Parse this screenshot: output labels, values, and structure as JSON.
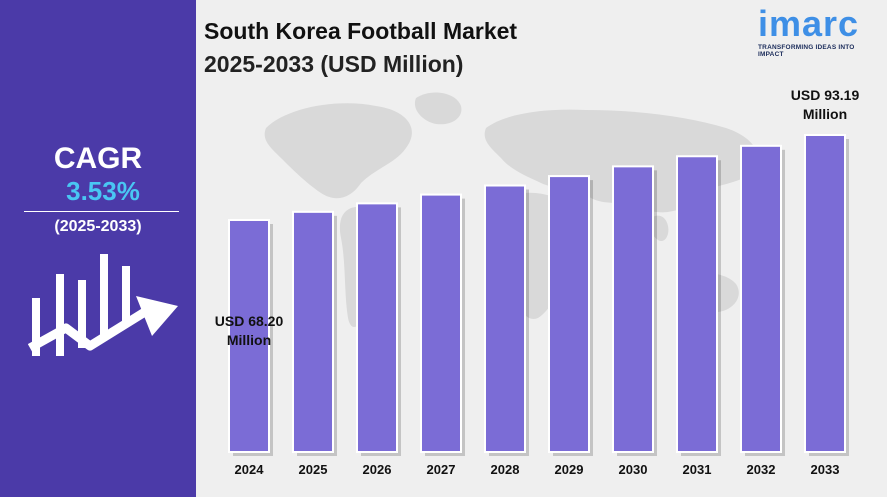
{
  "title_line1": "South Korea Football Market",
  "title_line2": "2025-2033 (USD Million)",
  "logo": {
    "text": "imarc",
    "tagline": "TRANSFORMING IDEAS INTO IMPACT"
  },
  "cagr": {
    "label": "CAGR",
    "value": "3.53%",
    "period": "(2025-2033)"
  },
  "icons": [
    "growth-bars-arrow-icon",
    "world-map-background"
  ],
  "colors": {
    "left_panel": "#4b3aa8",
    "bar_fill": "#7b6cd6",
    "bar_edge": "#ffffff",
    "cagr_value": "#49c6f3",
    "logo": "#3e8fe6"
  },
  "annotations": {
    "first_value": "USD 68.20",
    "first_unit": "Million",
    "last_value": "USD 93.19",
    "last_unit": "Million"
  },
  "chart_data": {
    "type": "bar",
    "categories": [
      "2024",
      "2025",
      "2026",
      "2027",
      "2028",
      "2029",
      "2030",
      "2031",
      "2032",
      "2033"
    ],
    "values": [
      68.2,
      70.6,
      73.09,
      75.67,
      78.34,
      81.11,
      83.97,
      86.94,
      90.01,
      93.19
    ],
    "title": "South Korea Football Market 2025-2033 (USD Million)",
    "xlabel": "",
    "ylabel": "",
    "y_axis_shown": false,
    "grid": false,
    "legend": "none"
  }
}
